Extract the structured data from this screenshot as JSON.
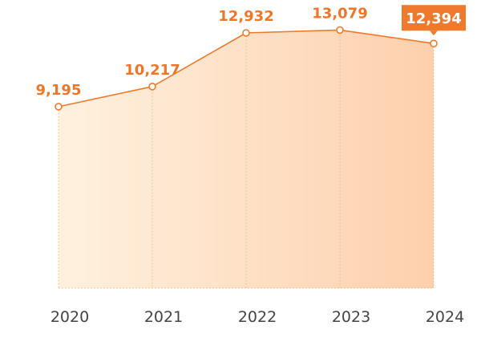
{
  "chart_data": {
    "type": "area",
    "categories": [
      "2020",
      "2021",
      "2022",
      "2023",
      "2024"
    ],
    "values": [
      9195,
      10217,
      12932,
      13079,
      12394
    ],
    "value_labels": [
      "9,195",
      "10,217",
      "12,932",
      "13,079",
      "12,394"
    ],
    "title": "",
    "xlabel": "",
    "ylabel": "",
    "ylim": [
      0,
      14600
    ],
    "grid": false,
    "highlight_index": 4,
    "colors": {
      "line": "#f07a2c",
      "label": "#ee7628",
      "callout": "#f07a2c",
      "fill_light": "#fff1df",
      "fill_dark": "#fdd0ad",
      "marker_fill": "#ffffff",
      "guide": "#f4b58a"
    }
  }
}
